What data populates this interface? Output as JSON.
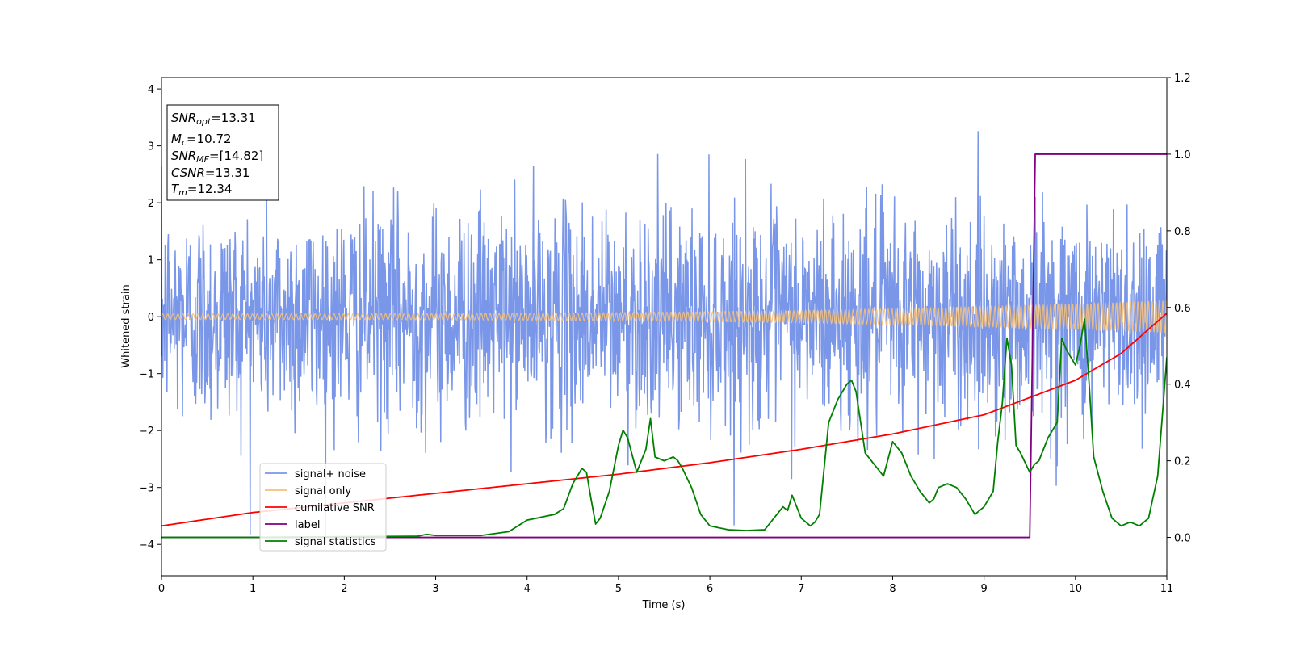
{
  "chart_data": {
    "type": "line",
    "xlabel": "Time (s)",
    "ylabel_left": "Whitened strain",
    "ylabel_right": "",
    "xlim": [
      0,
      11
    ],
    "ylim_left": [
      -4.55,
      4.2
    ],
    "ylim_right": [
      -0.1,
      1.2
    ],
    "x_ticks": [
      0,
      1,
      2,
      3,
      4,
      5,
      6,
      7,
      8,
      9,
      10,
      11
    ],
    "y_ticks_left": [
      -4,
      -3,
      -2,
      -1,
      0,
      1,
      2,
      3,
      4
    ],
    "y_ticks_right": [
      0.0,
      0.2,
      0.4,
      0.6,
      0.8,
      1.0,
      1.2
    ],
    "grid": false,
    "legend_position": "lower-left",
    "annotation": {
      "lines": [
        {
          "var": "SNR",
          "sub": "opt",
          "value": "=13.31"
        },
        {
          "var": "M",
          "sub": "c",
          "value": "=10.72"
        },
        {
          "var": "SNR",
          "sub": "MF",
          "value": "=[14.82]"
        },
        {
          "var": "CSNR",
          "sub": "",
          "value": "=13.31"
        },
        {
          "var": "T",
          "sub": "m",
          "value": "=12.34"
        }
      ]
    },
    "series": [
      {
        "name": "signal+ noise",
        "color": "#7996e8",
        "axis": "left",
        "kind": "noise",
        "sigma": 0.95,
        "sample_rate_hz": 200
      },
      {
        "name": "signal only",
        "color": "#f5c07a",
        "axis": "left",
        "kind": "chirp",
        "amplitude_start": 0.05,
        "amplitude_end": 0.28
      },
      {
        "name": "cumilative SNR",
        "color": "#ff0000",
        "axis": "right",
        "x": [
          0,
          1,
          2,
          3,
          4,
          5,
          6,
          7,
          8,
          9,
          10,
          10.5,
          11
        ],
        "y": [
          0.03,
          0.065,
          0.09,
          0.115,
          0.14,
          0.165,
          0.195,
          0.23,
          0.27,
          0.32,
          0.41,
          0.48,
          0.585
        ]
      },
      {
        "name": "label",
        "color": "#800080",
        "axis": "right",
        "x": [
          0,
          9.5,
          9.56,
          11
        ],
        "y": [
          0.0,
          0.0,
          1.0,
          1.0
        ]
      },
      {
        "name": "signal statistics",
        "color": "#008000",
        "axis": "right",
        "x": [
          0,
          1,
          2,
          2.8,
          2.9,
          3.0,
          3.5,
          3.8,
          3.9,
          4.0,
          4.1,
          4.2,
          4.3,
          4.4,
          4.5,
          4.6,
          4.65,
          4.7,
          4.75,
          4.8,
          4.9,
          5.0,
          5.05,
          5.1,
          5.2,
          5.3,
          5.35,
          5.4,
          5.5,
          5.6,
          5.65,
          5.7,
          5.8,
          5.9,
          6.0,
          6.2,
          6.4,
          6.6,
          6.7,
          6.8,
          6.85,
          6.9,
          7.0,
          7.1,
          7.15,
          7.2,
          7.3,
          7.4,
          7.5,
          7.55,
          7.6,
          7.7,
          7.8,
          7.9,
          8.0,
          8.1,
          8.2,
          8.3,
          8.4,
          8.45,
          8.5,
          8.6,
          8.7,
          8.8,
          8.9,
          9.0,
          9.1,
          9.15,
          9.2,
          9.25,
          9.3,
          9.35,
          9.4,
          9.5,
          9.55,
          9.6,
          9.7,
          9.8,
          9.85,
          9.9,
          10.0,
          10.05,
          10.1,
          10.15,
          10.2,
          10.3,
          10.4,
          10.5,
          10.6,
          10.7,
          10.8,
          10.9,
          11.0
        ],
        "y": [
          0.0,
          0.0,
          0.002,
          0.003,
          0.008,
          0.005,
          0.005,
          0.015,
          0.03,
          0.045,
          0.05,
          0.055,
          0.06,
          0.075,
          0.14,
          0.18,
          0.17,
          0.1,
          0.035,
          0.05,
          0.12,
          0.24,
          0.28,
          0.26,
          0.17,
          0.23,
          0.31,
          0.21,
          0.2,
          0.21,
          0.2,
          0.18,
          0.13,
          0.06,
          0.03,
          0.02,
          0.018,
          0.02,
          0.05,
          0.08,
          0.07,
          0.11,
          0.05,
          0.03,
          0.04,
          0.06,
          0.3,
          0.36,
          0.4,
          0.41,
          0.38,
          0.22,
          0.19,
          0.16,
          0.25,
          0.22,
          0.16,
          0.12,
          0.09,
          0.1,
          0.13,
          0.14,
          0.13,
          0.1,
          0.06,
          0.08,
          0.12,
          0.25,
          0.35,
          0.52,
          0.45,
          0.24,
          0.22,
          0.17,
          0.19,
          0.2,
          0.26,
          0.3,
          0.52,
          0.49,
          0.45,
          0.5,
          0.57,
          0.4,
          0.21,
          0.12,
          0.05,
          0.03,
          0.04,
          0.03,
          0.05,
          0.16,
          0.47
        ]
      }
    ]
  }
}
